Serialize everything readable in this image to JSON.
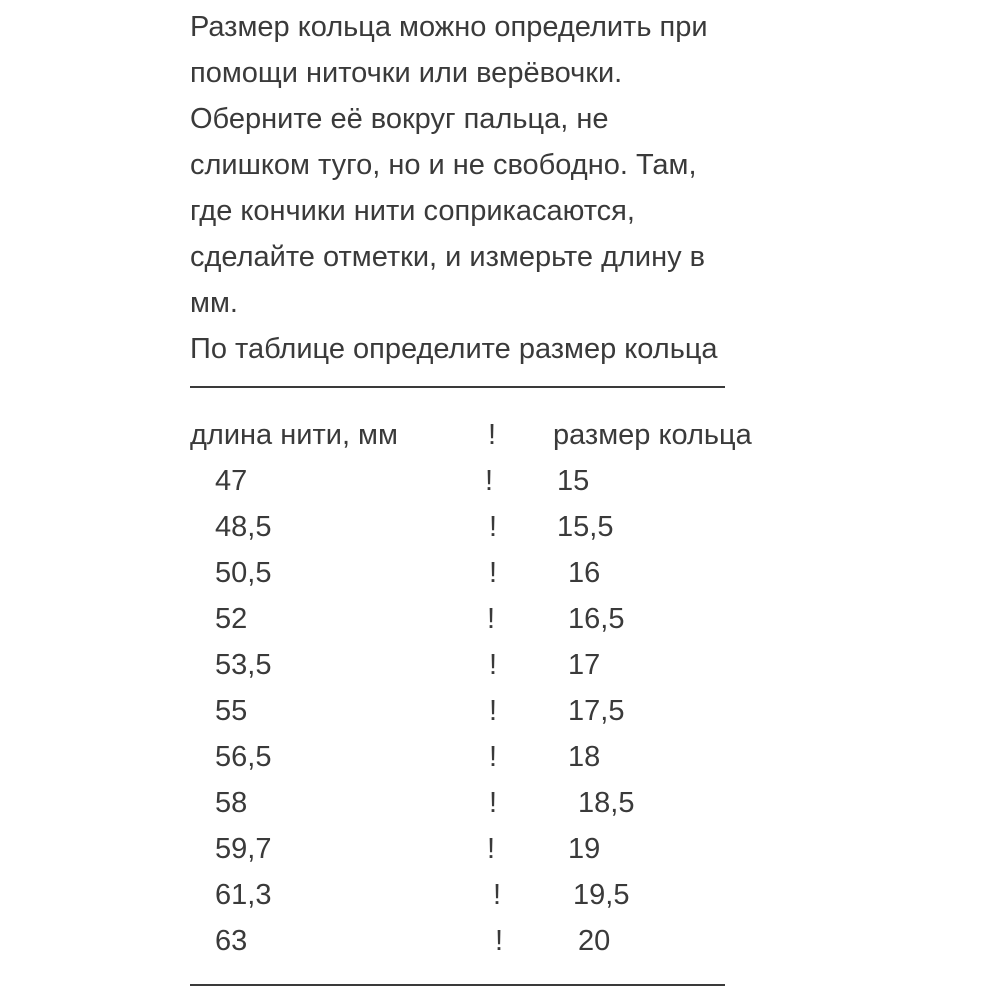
{
  "intro_lines": [
    "Размер кольца можно определить при",
    "помощи ниточки или верёвочки.",
    "Оберните её вокруг пальца, не",
    "слишком туго, но и не свободно. Там,",
    "где кончики нити соприкасаются,",
    "сделайте отметки, и измерьте длину в",
    "мм.",
    "По таблице определите размер кольца"
  ],
  "table": {
    "headers": [
      "длина нити, мм",
      "!",
      "размер кольца"
    ],
    "separator": "!",
    "rows": [
      [
        "47",
        "15"
      ],
      [
        "48,5",
        "15,5"
      ],
      [
        "50,5",
        "16"
      ],
      [
        "52",
        "16,5"
      ],
      [
        "53,5",
        "17"
      ],
      [
        "55",
        "17,5"
      ],
      [
        "56,5",
        "18"
      ],
      [
        "58",
        "18,5"
      ],
      [
        "59,7",
        "19"
      ],
      [
        "61,3",
        "19,5"
      ],
      [
        "63",
        "20"
      ]
    ]
  }
}
